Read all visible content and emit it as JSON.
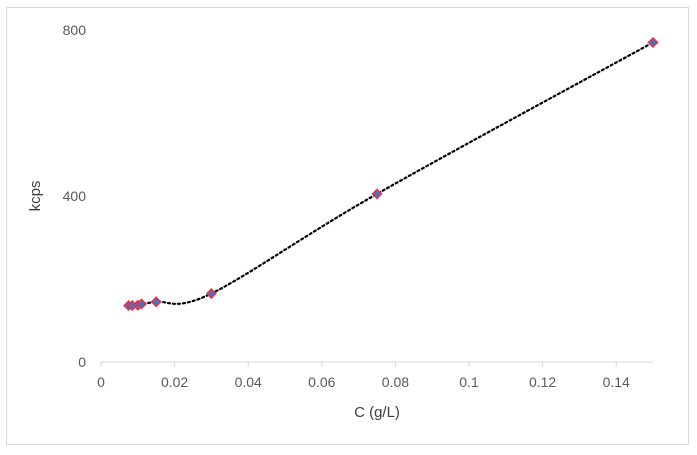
{
  "chart_data": {
    "type": "scatter",
    "title": "",
    "xlabel": "C (g/L)",
    "ylabel": "kcps",
    "xlim": [
      0,
      0.15
    ],
    "ylim": [
      0,
      800
    ],
    "xticks": [
      0,
      0.02,
      0.04,
      0.06,
      0.08,
      0.1,
      0.12,
      0.14
    ],
    "xtick_labels": [
      "0",
      "0.02",
      "0.04",
      "0.06",
      "0.08",
      "0.1",
      "0.12",
      "0.14"
    ],
    "yticks": [
      0,
      400,
      800
    ],
    "ytick_labels": [
      "0",
      "400",
      "800"
    ],
    "grid": false,
    "legend": "none",
    "marker": "diamond",
    "marker_fill": "#4472c4",
    "marker_edge": "#e8344a",
    "trendline": "dotted",
    "trendline_color": "#000000",
    "axis_color": "#d9d9d9",
    "series": [
      {
        "x": [
          0.0075,
          0.0085,
          0.01,
          0.011,
          0.015,
          0.03,
          0.075,
          0.15
        ],
        "y": [
          136,
          136,
          137,
          140,
          145,
          165,
          405,
          770
        ]
      }
    ]
  }
}
